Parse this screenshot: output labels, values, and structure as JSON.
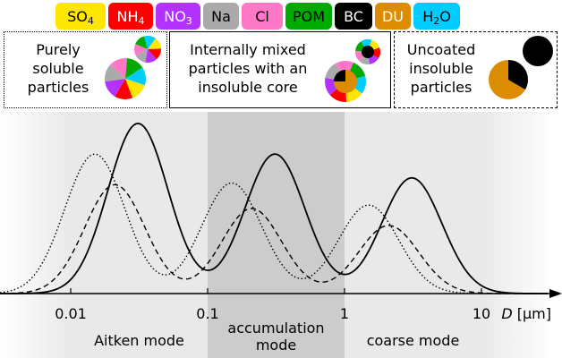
{
  "legend": {
    "items": [
      {
        "base": "SO",
        "sub": "4",
        "tail": "",
        "color": "#ffe600",
        "text_color": "#000000",
        "width": 56
      },
      {
        "base": "NH",
        "sub": "4",
        "tail": "",
        "color": "#ff0000",
        "text_color": "#ffffff",
        "width": 50
      },
      {
        "base": "NO",
        "sub": "3",
        "tail": "",
        "color": "#b432ff",
        "text_color": "#ffffff",
        "width": 50
      },
      {
        "base": "Na",
        "sub": "",
        "tail": "",
        "color": "#aaaaaa",
        "text_color": "#000000",
        "width": 40
      },
      {
        "base": "Cl",
        "sub": "",
        "tail": "",
        "color": "#ff78c8",
        "text_color": "#000000",
        "width": 46
      },
      {
        "base": "POM",
        "sub": "",
        "tail": "",
        "color": "#00aa00",
        "text_color": "#000000",
        "width": 52
      },
      {
        "base": "BC",
        "sub": "",
        "tail": "",
        "color": "#000000",
        "text_color": "#ffffff",
        "width": 42
      },
      {
        "base": "DU",
        "sub": "",
        "tail": "",
        "color": "#dc8c00",
        "text_color": "#ffffff",
        "width": 40
      },
      {
        "base": "H",
        "sub": "2",
        "tail": "O",
        "color": "#00ccff",
        "text_color": "#000000",
        "width": 52
      }
    ]
  },
  "categories": {
    "soluble": {
      "label_lines": [
        "Purely",
        "soluble",
        "particles"
      ]
    },
    "mixed": {
      "label_lines": [
        "Internally mixed",
        "particles with an",
        "insoluble core"
      ]
    },
    "insoluble": {
      "label_lines": [
        "Uncoated",
        "insoluble",
        "particles"
      ]
    }
  },
  "axis": {
    "ticks": [
      {
        "value": 0.01,
        "label": "0.01"
      },
      {
        "value": 0.1,
        "label": "0.1"
      },
      {
        "value": 1,
        "label": "1"
      },
      {
        "value": 10,
        "label": "10"
      }
    ],
    "variable": "D",
    "unit": "[µm]"
  },
  "modes": [
    {
      "label_lines": [
        "Aitken mode"
      ],
      "range": [
        0.01,
        0.1
      ]
    },
    {
      "label_lines": [
        "accumulation",
        "mode"
      ],
      "range": [
        0.1,
        1
      ]
    },
    {
      "label_lines": [
        "coarse mode"
      ],
      "range": [
        1,
        10
      ]
    }
  ],
  "curves": [
    {
      "style": "dotted",
      "modes": [
        {
          "center": 0.015,
          "height": 0.82,
          "sigma": 0.22
        },
        {
          "center": 0.15,
          "height": 0.65,
          "sigma": 0.22
        },
        {
          "center": 1.5,
          "height": 0.52,
          "sigma": 0.22
        }
      ]
    },
    {
      "style": "dashed",
      "modes": [
        {
          "center": 0.021,
          "height": 0.64,
          "sigma": 0.22
        },
        {
          "center": 0.21,
          "height": 0.5,
          "sigma": 0.22
        },
        {
          "center": 2.1,
          "height": 0.4,
          "sigma": 0.22
        }
      ]
    },
    {
      "style": "solid",
      "modes": [
        {
          "center": 0.031,
          "height": 1.0,
          "sigma": 0.22
        },
        {
          "center": 0.31,
          "height": 0.82,
          "sigma": 0.22
        },
        {
          "center": 3.1,
          "height": 0.68,
          "sigma": 0.22
        }
      ]
    }
  ]
}
